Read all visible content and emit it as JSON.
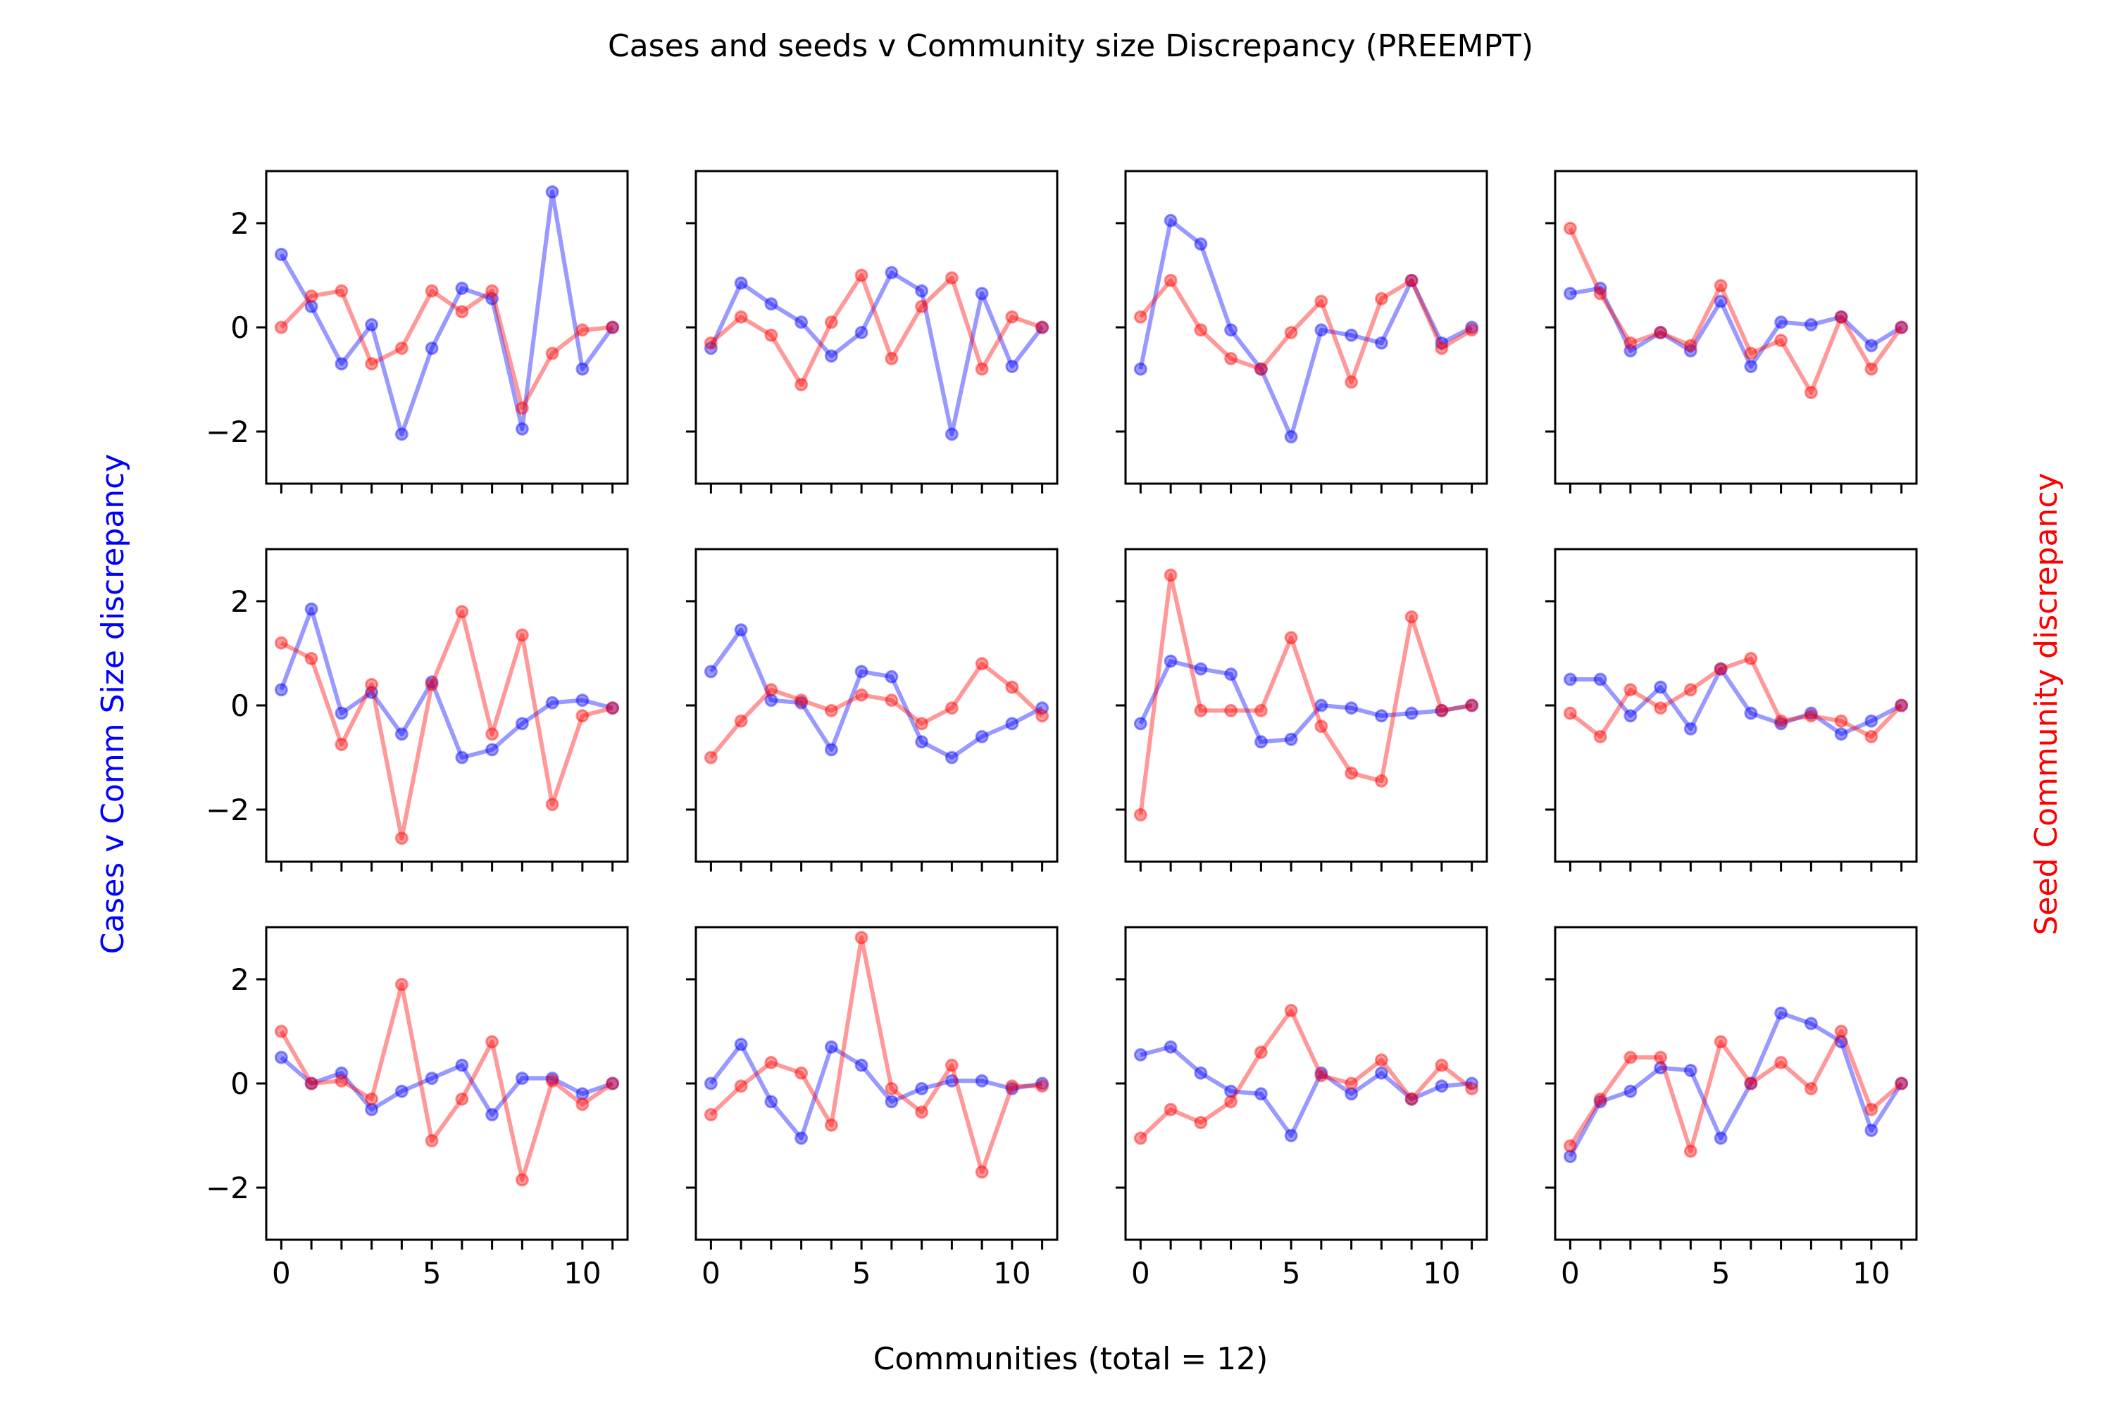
{
  "figure": {
    "title": "Cases and seeds v Community size Discrepancy (PREEMPT)",
    "left_ylabel": "Cases v Comm Size discrepancy",
    "right_ylabel": "Seed Community discrepancy",
    "xlabel": "Communities (total = 12)",
    "colors": {
      "cases": "#0000ff",
      "seeds": "#ff0000",
      "text": "#000000"
    }
  },
  "chart_data": {
    "type": "line",
    "grid": false,
    "layout_rows": 3,
    "layout_cols": 4,
    "shared_xlim": [
      -0.5,
      11.5
    ],
    "shared_ylim": [
      -3,
      3
    ],
    "x": [
      0,
      1,
      2,
      3,
      4,
      5,
      6,
      7,
      8,
      9,
      10,
      11
    ],
    "xticks": [
      0,
      5,
      10
    ],
    "yticks": [
      -2,
      0,
      2
    ],
    "xtick_labels": [
      "0",
      "5",
      "10"
    ],
    "ytick_labels": [
      "−2",
      "0",
      "2"
    ],
    "panels": [
      {
        "cases": [
          1.4,
          0.4,
          -0.7,
          0.05,
          -2.05,
          -0.4,
          0.75,
          0.55,
          -1.95,
          2.6,
          -0.8,
          0.0
        ],
        "seeds": [
          0.0,
          0.6,
          0.7,
          -0.7,
          -0.4,
          0.7,
          0.3,
          0.7,
          -1.55,
          -0.5,
          -0.05,
          0.0
        ]
      },
      {
        "cases": [
          -0.4,
          0.85,
          0.45,
          0.1,
          -0.55,
          -0.1,
          1.05,
          0.7,
          -2.05,
          0.65,
          -0.75,
          0.0
        ],
        "seeds": [
          -0.3,
          0.2,
          -0.15,
          -1.1,
          0.1,
          1.0,
          -0.6,
          0.4,
          0.95,
          -0.8,
          0.2,
          0.0
        ]
      },
      {
        "cases": [
          -0.8,
          2.05,
          1.6,
          -0.05,
          -0.8,
          -2.1,
          -0.05,
          -0.15,
          -0.3,
          0.9,
          -0.3,
          0.0
        ],
        "seeds": [
          0.2,
          0.9,
          -0.05,
          -0.6,
          -0.8,
          -0.1,
          0.5,
          -1.05,
          0.55,
          0.9,
          -0.4,
          -0.05
        ]
      },
      {
        "cases": [
          0.65,
          0.75,
          -0.45,
          -0.1,
          -0.45,
          0.5,
          -0.75,
          0.1,
          0.05,
          0.2,
          -0.35,
          0.0
        ],
        "seeds": [
          1.9,
          0.65,
          -0.3,
          -0.1,
          -0.35,
          0.8,
          -0.5,
          -0.25,
          -1.25,
          0.2,
          -0.8,
          0.0
        ]
      },
      {
        "cases": [
          0.3,
          1.85,
          -0.15,
          0.25,
          -0.55,
          0.45,
          -1.0,
          -0.85,
          -0.35,
          0.05,
          0.1,
          -0.05
        ],
        "seeds": [
          1.2,
          0.9,
          -0.75,
          0.4,
          -2.55,
          0.4,
          1.8,
          -0.55,
          1.35,
          -1.9,
          -0.2,
          -0.05
        ]
      },
      {
        "cases": [
          0.65,
          1.45,
          0.1,
          0.05,
          -0.85,
          0.65,
          0.55,
          -0.7,
          -1.0,
          -0.6,
          -0.35,
          -0.05
        ],
        "seeds": [
          -1.0,
          -0.3,
          0.3,
          0.1,
          -0.1,
          0.2,
          0.1,
          -0.35,
          -0.05,
          0.8,
          0.35,
          -0.2
        ]
      },
      {
        "cases": [
          -0.35,
          0.85,
          0.7,
          0.6,
          -0.7,
          -0.65,
          0.0,
          -0.05,
          -0.2,
          -0.15,
          -0.1,
          0.0
        ],
        "seeds": [
          -2.1,
          2.5,
          -0.1,
          -0.1,
          -0.1,
          1.3,
          -0.4,
          -1.3,
          -1.45,
          1.7,
          -0.1,
          0.0
        ]
      },
      {
        "cases": [
          0.5,
          0.5,
          -0.2,
          0.35,
          -0.45,
          0.7,
          -0.15,
          -0.35,
          -0.15,
          -0.55,
          -0.3,
          0.0
        ],
        "seeds": [
          -0.15,
          -0.6,
          0.3,
          -0.05,
          0.3,
          0.7,
          0.9,
          -0.3,
          -0.2,
          -0.3,
          -0.6,
          0.0
        ]
      },
      {
        "cases": [
          0.5,
          0.0,
          0.2,
          -0.5,
          -0.15,
          0.1,
          0.35,
          -0.6,
          0.1,
          0.1,
          -0.2,
          0.0
        ],
        "seeds": [
          1.0,
          0.0,
          0.05,
          -0.3,
          1.9,
          -1.1,
          -0.3,
          0.8,
          -1.85,
          0.05,
          -0.4,
          0.0
        ]
      },
      {
        "cases": [
          0.0,
          0.75,
          -0.35,
          -1.05,
          0.7,
          0.35,
          -0.35,
          -0.1,
          0.05,
          0.05,
          -0.1,
          0.0
        ],
        "seeds": [
          -0.6,
          -0.05,
          0.4,
          0.2,
          -0.8,
          2.8,
          -0.1,
          -0.55,
          0.35,
          -1.7,
          -0.05,
          -0.05
        ]
      },
      {
        "cases": [
          0.55,
          0.7,
          0.2,
          -0.15,
          -0.2,
          -1.0,
          0.2,
          -0.2,
          0.2,
          -0.3,
          -0.05,
          0.0
        ],
        "seeds": [
          -1.05,
          -0.5,
          -0.75,
          -0.35,
          0.6,
          1.4,
          0.15,
          0.0,
          0.45,
          -0.3,
          0.35,
          -0.1
        ]
      },
      {
        "cases": [
          -1.4,
          -0.35,
          -0.15,
          0.3,
          0.25,
          -1.05,
          0.0,
          1.35,
          1.15,
          0.8,
          -0.9,
          0.0
        ],
        "seeds": [
          -1.2,
          -0.3,
          0.5,
          0.5,
          -1.3,
          0.8,
          0.0,
          0.4,
          -0.1,
          1.0,
          -0.5,
          0.0
        ]
      }
    ]
  }
}
